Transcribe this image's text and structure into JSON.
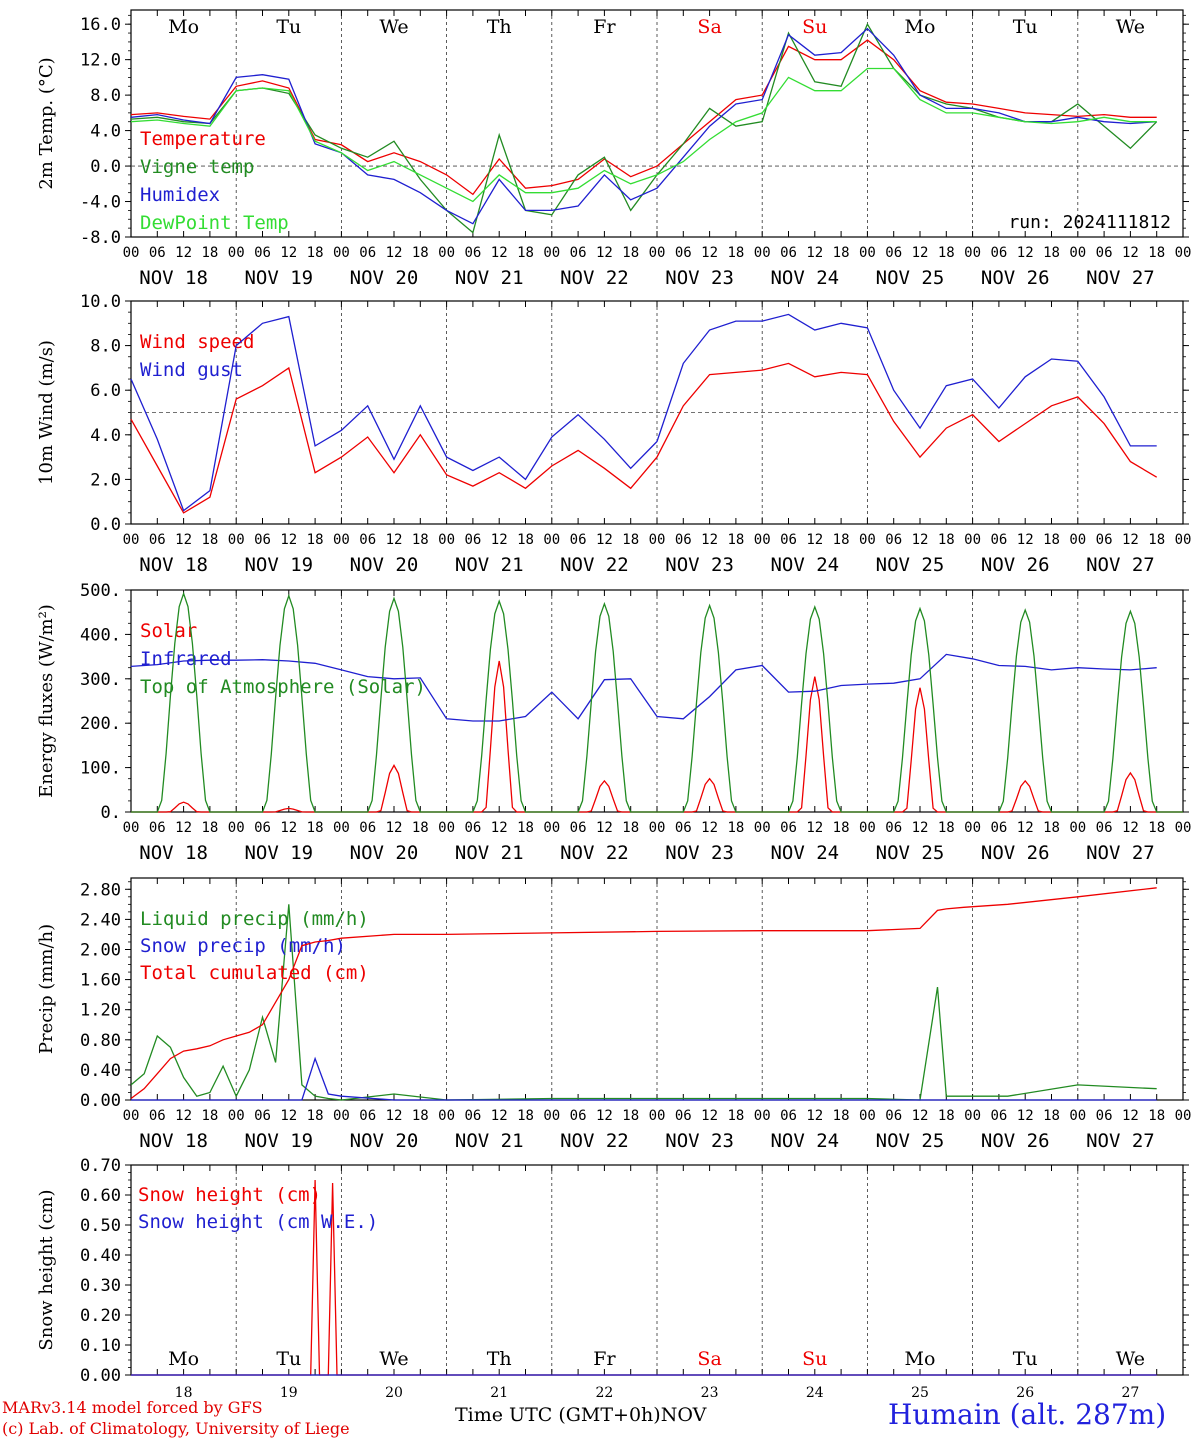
{
  "days": {
    "weekdays": [
      "Mo",
      "Tu",
      "We",
      "Th",
      "Fr",
      "Sa",
      "Su",
      "Mo",
      "Tu",
      "We"
    ],
    "weekday_colors": [
      "#000000",
      "#000000",
      "#000000",
      "#000000",
      "#000000",
      "#ee0000",
      "#ee0000",
      "#000000",
      "#000000",
      "#000000"
    ],
    "dates": [
      "NOV 18",
      "NOV 19",
      "NOV 20",
      "NOV 21",
      "NOV 22",
      "NOV 23",
      "NOV 24",
      "NOV 25",
      "NOV 26",
      "NOV 27"
    ],
    "day_numbers": [
      "18",
      "19",
      "20",
      "21",
      "22",
      "23",
      "24",
      "25",
      "26",
      "27"
    ],
    "hour_ticks": [
      "00",
      "06",
      "12",
      "18"
    ],
    "last_tick": "00"
  },
  "footer": {
    "credit_line1": "MARv3.14 model forced by GFS",
    "credit_line2": "(c) Lab. of Climatology, University of Liege",
    "x_title": "Time UTC (GMT+0h)",
    "month": "NOV",
    "station": "Humain (alt. 287m)"
  },
  "chart_data": [
    {
      "type": "line",
      "ylabel": "2m Temp. (°C)",
      "ylim": [
        -8,
        17.6
      ],
      "yticks": [
        "16.0",
        "12.0",
        "8.0",
        "4.0",
        "0.0",
        "-4.0",
        "-8.0"
      ],
      "ytick_values": [
        16,
        12,
        8,
        4,
        0,
        -4,
        -8
      ],
      "reference_line": 0,
      "run_label": "run: 2024111812",
      "x_hours": [
        0,
        6,
        12,
        18,
        24,
        30,
        36,
        42,
        48,
        54,
        60,
        66,
        72,
        78,
        84,
        90,
        96,
        102,
        108,
        114,
        120,
        126,
        132,
        138,
        144,
        150,
        156,
        162,
        168,
        174,
        180,
        186,
        192,
        198,
        204,
        210,
        216,
        222,
        228,
        234
      ],
      "series": [
        {
          "name": "Temperature",
          "color": "#ee0000",
          "values": [
            5.8,
            6.0,
            5.6,
            5.3,
            9.0,
            9.6,
            8.8,
            3.0,
            2.4,
            0.5,
            1.5,
            0.5,
            -1.0,
            -3.2,
            0.8,
            -2.5,
            -2.2,
            -1.5,
            0.8,
            -1.2,
            0.0,
            2.5,
            5.0,
            7.5,
            8.0,
            13.5,
            12.0,
            12.0,
            14.2,
            12.0,
            8.5,
            7.2,
            7.0,
            6.5,
            6.0,
            5.8,
            5.6,
            5.8,
            5.5,
            5.5
          ]
        },
        {
          "name": "Vigne temp",
          "color": "#228b22",
          "values": [
            5.3,
            5.5,
            5.0,
            4.8,
            8.5,
            8.8,
            8.2,
            3.5,
            2.0,
            1.0,
            2.8,
            -1.5,
            -5.0,
            -7.5,
            3.5,
            -5.0,
            -5.5,
            -1.0,
            1.0,
            -5.0,
            -1.0,
            2.5,
            6.5,
            4.5,
            5.0,
            15.0,
            9.5,
            9.0,
            16.0,
            11.0,
            8.0,
            7.0,
            6.5,
            5.5,
            5.0,
            5.0,
            7.0,
            4.5,
            2.0,
            5.0
          ]
        },
        {
          "name": "Humidex",
          "color": "#1f1fd0",
          "values": [
            5.5,
            5.8,
            5.2,
            4.8,
            10.0,
            10.3,
            9.8,
            2.5,
            1.5,
            -1.0,
            -1.5,
            -3.0,
            -5.0,
            -6.5,
            -1.5,
            -5.0,
            -5.0,
            -4.5,
            -1.0,
            -3.8,
            -2.5,
            1.0,
            4.5,
            7.0,
            7.5,
            14.8,
            12.5,
            12.8,
            15.5,
            12.5,
            8.0,
            6.5,
            6.5,
            6.0,
            5.0,
            5.0,
            5.5,
            5.0,
            4.8,
            5.0
          ]
        },
        {
          "name": "DewPoint Temp",
          "color": "#33dd33",
          "values": [
            5.0,
            5.2,
            4.8,
            4.5,
            8.5,
            8.8,
            8.5,
            2.8,
            1.5,
            -0.5,
            0.5,
            -1.0,
            -2.5,
            -4.0,
            -1.0,
            -3.0,
            -3.0,
            -2.5,
            -0.5,
            -2.0,
            -1.0,
            0.5,
            3.0,
            5.0,
            6.0,
            10.0,
            8.5,
            8.5,
            11.0,
            11.0,
            7.5,
            6.0,
            6.0,
            5.5,
            5.0,
            4.8,
            5.0,
            5.5,
            5.0,
            5.0
          ]
        }
      ]
    },
    {
      "type": "line",
      "ylabel": "10m Wind (m/s)",
      "ylim": [
        0,
        10
      ],
      "yticks": [
        "10.0",
        "8.0",
        "6.0",
        "4.0",
        "2.0",
        "0.0"
      ],
      "ytick_values": [
        10,
        8,
        6,
        4,
        2,
        0
      ],
      "reference_line": 5,
      "x_hours": [
        0,
        6,
        12,
        18,
        24,
        30,
        36,
        42,
        48,
        54,
        60,
        66,
        72,
        78,
        84,
        90,
        96,
        102,
        108,
        114,
        120,
        126,
        132,
        138,
        144,
        150,
        156,
        162,
        168,
        174,
        180,
        186,
        192,
        198,
        204,
        210,
        216,
        222,
        228,
        234
      ],
      "series": [
        {
          "name": "Wind speed",
          "color": "#ee0000",
          "values": [
            4.7,
            2.6,
            0.5,
            1.2,
            5.6,
            6.2,
            7.0,
            2.3,
            3.0,
            3.9,
            2.3,
            4.0,
            2.2,
            1.7,
            2.3,
            1.6,
            2.6,
            3.3,
            2.5,
            1.6,
            3.0,
            5.3,
            6.7,
            6.8,
            6.9,
            7.2,
            6.6,
            6.8,
            6.7,
            4.6,
            3.0,
            4.3,
            4.9,
            3.7,
            4.5,
            5.3,
            5.7,
            4.5,
            2.8,
            2.1
          ]
        },
        {
          "name": "Wind gust",
          "color": "#1f1fd0",
          "values": [
            6.5,
            3.8,
            0.6,
            1.5,
            8.0,
            9.0,
            9.3,
            3.5,
            4.2,
            5.3,
            2.9,
            5.3,
            3.0,
            2.4,
            3.0,
            2.0,
            3.9,
            4.9,
            3.8,
            2.5,
            3.7,
            7.2,
            8.7,
            9.1,
            9.1,
            9.4,
            8.7,
            9.0,
            8.8,
            6.0,
            4.3,
            6.2,
            6.5,
            5.2,
            6.6,
            7.4,
            7.3,
            5.7,
            3.5,
            3.5
          ]
        }
      ]
    },
    {
      "type": "line",
      "ylabel": "Energy fluxes (W/m²)",
      "ylim": [
        0,
        500
      ],
      "yticks": [
        "500.",
        "400.",
        "300.",
        "200.",
        "100.",
        "0."
      ],
      "ytick_values": [
        500,
        400,
        300,
        200,
        100,
        0
      ],
      "x_hours": [
        0,
        6,
        12,
        18,
        24,
        30,
        36,
        42,
        48,
        54,
        60,
        66,
        72,
        78,
        84,
        90,
        96,
        102,
        108,
        114,
        120,
        126,
        132,
        138,
        144,
        150,
        156,
        162,
        168,
        174,
        180,
        186,
        192,
        198,
        204,
        210,
        216,
        222,
        228,
        234
      ],
      "series": [
        {
          "name": "Solar",
          "color": "#ee0000",
          "peaks": [
            22,
            8,
            105,
            340,
            70,
            75,
            305,
            280,
            70,
            88
          ]
        },
        {
          "name": "Infrared",
          "color": "#1f1fd0",
          "values": [
            328,
            332,
            340,
            342,
            342,
            343,
            340,
            335,
            320,
            305,
            300,
            302,
            210,
            205,
            205,
            215,
            270,
            210,
            298,
            300,
            215,
            210,
            260,
            320,
            330,
            270,
            272,
            285,
            288,
            290,
            300,
            355,
            345,
            330,
            328,
            320,
            325,
            322,
            320,
            325
          ]
        },
        {
          "name": "Top of Atmosphere (Solar)",
          "color": "#228b22",
          "peaks": [
            492,
            487,
            481,
            475,
            469,
            465,
            462,
            458,
            455,
            452
          ]
        }
      ]
    },
    {
      "type": "line",
      "ylabel": "Precip (mm/h)",
      "ylim": [
        0,
        2.95
      ],
      "yticks": [
        "2.80",
        "2.40",
        "2.00",
        "1.60",
        "1.20",
        "0.80",
        "0.40",
        "0.00"
      ],
      "ytick_values": [
        2.8,
        2.4,
        2.0,
        1.6,
        1.2,
        0.8,
        0.4,
        0.0
      ],
      "x_hours": [
        0,
        3,
        6,
        9,
        12,
        15,
        18,
        21,
        24,
        27,
        30,
        33,
        36,
        39,
        42,
        45,
        48,
        60,
        72,
        96,
        120,
        144,
        168,
        180,
        184,
        186,
        190,
        200,
        216,
        234
      ],
      "series": [
        {
          "name": "Liquid precip (mm/h)",
          "color": "#228b22",
          "values": [
            0.2,
            0.35,
            0.85,
            0.7,
            0.3,
            0.05,
            0.1,
            0.45,
            0.05,
            0.4,
            1.1,
            0.5,
            2.6,
            0.2,
            0.05,
            0.02,
            0.0,
            0.08,
            0.0,
            0.02,
            0.02,
            0.02,
            0.02,
            0.0,
            1.5,
            0.05,
            0.05,
            0.05,
            0.2,
            0.15
          ]
        },
        {
          "name": "Snow precip (mm/h)",
          "color": "#1f1fd0",
          "values": [
            0.0,
            0.0,
            0.0,
            0.0,
            0.0,
            0.0,
            0.0,
            0.0,
            0.0,
            0.0,
            0.0,
            0.0,
            0.0,
            0.0,
            0.55,
            0.08,
            0.05,
            0.0,
            0.0,
            0.0,
            0.0,
            0.0,
            0.0,
            0.0,
            0.0,
            0.0,
            0.0,
            0.0,
            0.0,
            0.0
          ]
        },
        {
          "name": "Total cumulated (cm)",
          "color": "#ee0000",
          "values": [
            0.02,
            0.15,
            0.35,
            0.55,
            0.65,
            0.68,
            0.72,
            0.8,
            0.85,
            0.9,
            1.0,
            1.3,
            1.6,
            2.05,
            2.1,
            2.12,
            2.15,
            2.2,
            2.2,
            2.22,
            2.24,
            2.25,
            2.25,
            2.28,
            2.52,
            2.54,
            2.56,
            2.6,
            2.7,
            2.82
          ]
        }
      ]
    },
    {
      "type": "line",
      "ylabel": "Snow height (cm)",
      "ylim": [
        0,
        0.7
      ],
      "yticks": [
        "0.70",
        "0.60",
        "0.50",
        "0.40",
        "0.30",
        "0.20",
        "0.10",
        "0.00"
      ],
      "ytick_values": [
        0.7,
        0.6,
        0.5,
        0.4,
        0.3,
        0.2,
        0.1,
        0.0
      ],
      "x_hours": [
        0,
        40,
        41,
        42,
        43,
        44,
        45,
        46,
        47,
        48,
        234
      ],
      "series": [
        {
          "name": "Snow height (cm)",
          "color": "#ee0000",
          "values": [
            0,
            0,
            0,
            0.65,
            0,
            0,
            0,
            0.64,
            0,
            0,
            0
          ]
        },
        {
          "name": "Snow height (cm W.E.)",
          "color": "#1f1fd0",
          "values": [
            0,
            0,
            0,
            0,
            0,
            0,
            0,
            0,
            0,
            0,
            0
          ]
        }
      ]
    }
  ]
}
